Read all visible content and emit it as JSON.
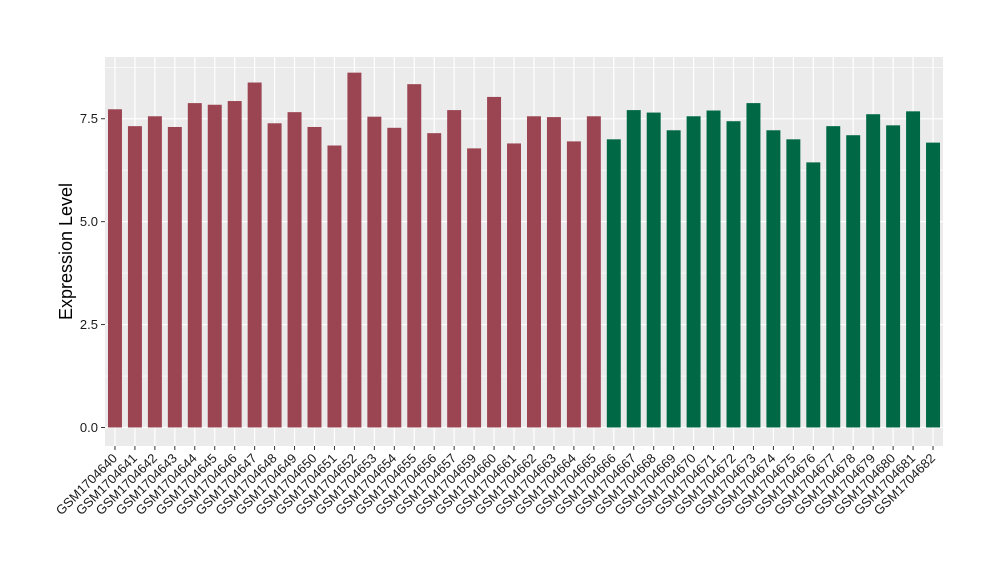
{
  "chart_data": {
    "type": "bar",
    "title": "",
    "xlabel": "",
    "ylabel": "Expression Level",
    "ylim": [
      -0.45,
      9.0
    ],
    "yticks": [
      0.0,
      2.5,
      5.0,
      7.5
    ],
    "ytick_labels": [
      "0.0",
      "2.5",
      "5.0",
      "7.5"
    ],
    "grid": true,
    "legend": "none",
    "colors": {
      "group_a": "#9b4452",
      "group_b": "#006844",
      "panel_background": "#ebebeb",
      "grid_line": "#ffffff"
    },
    "categories": [
      "GSM1704640",
      "GSM1704641",
      "GSM1704642",
      "GSM1704643",
      "GSM1704644",
      "GSM1704645",
      "GSM1704646",
      "GSM1704647",
      "GSM1704648",
      "GSM1704649",
      "GSM1704650",
      "GSM1704651",
      "GSM1704652",
      "GSM1704653",
      "GSM1704654",
      "GSM1704655",
      "GSM1704656",
      "GSM1704657",
      "GSM1704659",
      "GSM1704660",
      "GSM1704661",
      "GSM1704662",
      "GSM1704663",
      "GSM1704664",
      "GSM1704665",
      "GSM1704666",
      "GSM1704667",
      "GSM1704668",
      "GSM1704669",
      "GSM1704670",
      "GSM1704671",
      "GSM1704672",
      "GSM1704673",
      "GSM1704674",
      "GSM1704675",
      "GSM1704676",
      "GSM1704677",
      "GSM1704678",
      "GSM1704679",
      "GSM1704680",
      "GSM1704681",
      "GSM1704682"
    ],
    "values": [
      7.73,
      7.32,
      7.56,
      7.3,
      7.88,
      7.84,
      7.93,
      8.38,
      7.39,
      7.66,
      7.3,
      6.85,
      8.62,
      7.55,
      7.28,
      8.34,
      7.15,
      7.71,
      6.78,
      8.03,
      6.9,
      7.56,
      7.54,
      6.95,
      7.56,
      7.0,
      7.71,
      7.65,
      7.22,
      7.56,
      7.7,
      7.44,
      7.88,
      7.22,
      7.0,
      6.44,
      7.32,
      7.1,
      7.61,
      7.34,
      7.68,
      6.92
    ],
    "groups": [
      "a",
      "a",
      "a",
      "a",
      "a",
      "a",
      "a",
      "a",
      "a",
      "a",
      "a",
      "a",
      "a",
      "a",
      "a",
      "a",
      "a",
      "a",
      "a",
      "a",
      "a",
      "a",
      "a",
      "a",
      "a",
      "b",
      "b",
      "b",
      "b",
      "b",
      "b",
      "b",
      "b",
      "b",
      "b",
      "b",
      "b",
      "b",
      "b",
      "b",
      "b",
      "b"
    ]
  }
}
